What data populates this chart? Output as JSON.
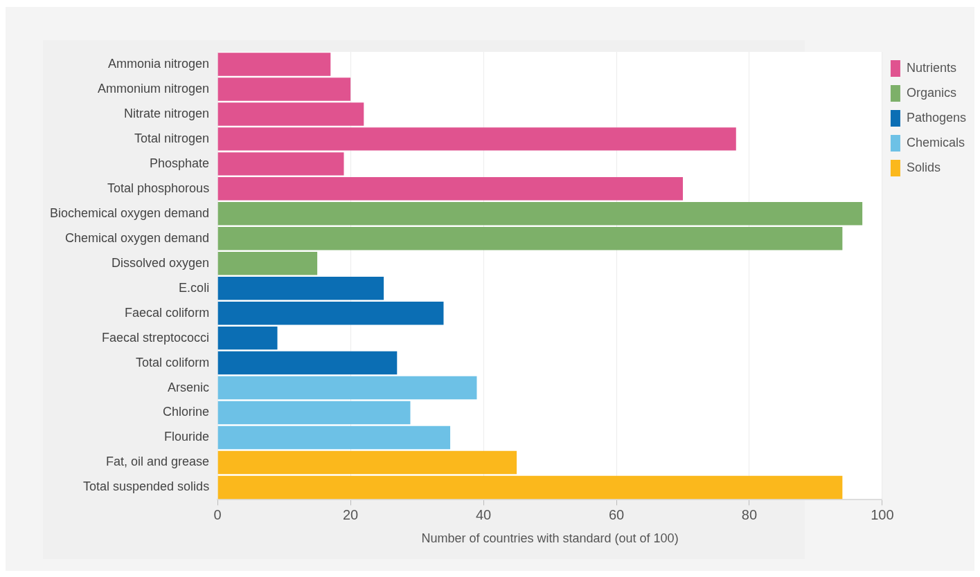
{
  "chart_data": {
    "type": "bar",
    "orientation": "horizontal",
    "stacked": true,
    "xlabel": "Number of countries with standard (out of 100)",
    "categories": [
      "Ammonia nitrogen",
      "Ammonium nitrogen",
      "Nitrate nitrogen",
      "Total nitrogen",
      "Phosphate",
      "Total phosphorous",
      "Biochemical oxygen demand",
      "Chemical oxygen demand",
      "Dissolved oxygen",
      "E.coli",
      "Faecal coliform",
      "Faecal streptococci",
      "Total coliform",
      "Arsenic",
      "Chlorine",
      "Flouride",
      "Fat, oil and grease",
      "Total suspended solids"
    ],
    "series": [
      {
        "name": "Nutrients",
        "color": "#e0538f",
        "values": [
          17,
          20,
          22,
          78,
          19,
          70,
          null,
          null,
          null,
          null,
          null,
          null,
          null,
          null,
          null,
          null,
          null,
          null
        ]
      },
      {
        "name": "Organics",
        "color": "#7db069",
        "values": [
          null,
          null,
          null,
          null,
          null,
          null,
          97,
          94,
          15,
          null,
          null,
          null,
          null,
          null,
          null,
          null,
          null,
          null
        ]
      },
      {
        "name": "Pathogens",
        "color": "#0b6eb4",
        "values": [
          null,
          null,
          null,
          null,
          null,
          null,
          null,
          null,
          null,
          25,
          34,
          9,
          27,
          null,
          null,
          null,
          null,
          null
        ]
      },
      {
        "name": "Chemicals",
        "color": "#6dc1e6",
        "values": [
          null,
          null,
          null,
          null,
          null,
          null,
          null,
          null,
          null,
          null,
          null,
          null,
          null,
          39,
          29,
          35,
          null,
          null
        ]
      },
      {
        "name": "Solids",
        "color": "#fbb81c",
        "values": [
          null,
          null,
          null,
          null,
          null,
          null,
          null,
          null,
          null,
          null,
          null,
          null,
          null,
          null,
          null,
          null,
          45,
          94
        ]
      }
    ],
    "xlim": [
      0,
      100
    ],
    "xticks": [
      0,
      20,
      40,
      60,
      80,
      100
    ],
    "grid": "x",
    "legend": "top right"
  }
}
